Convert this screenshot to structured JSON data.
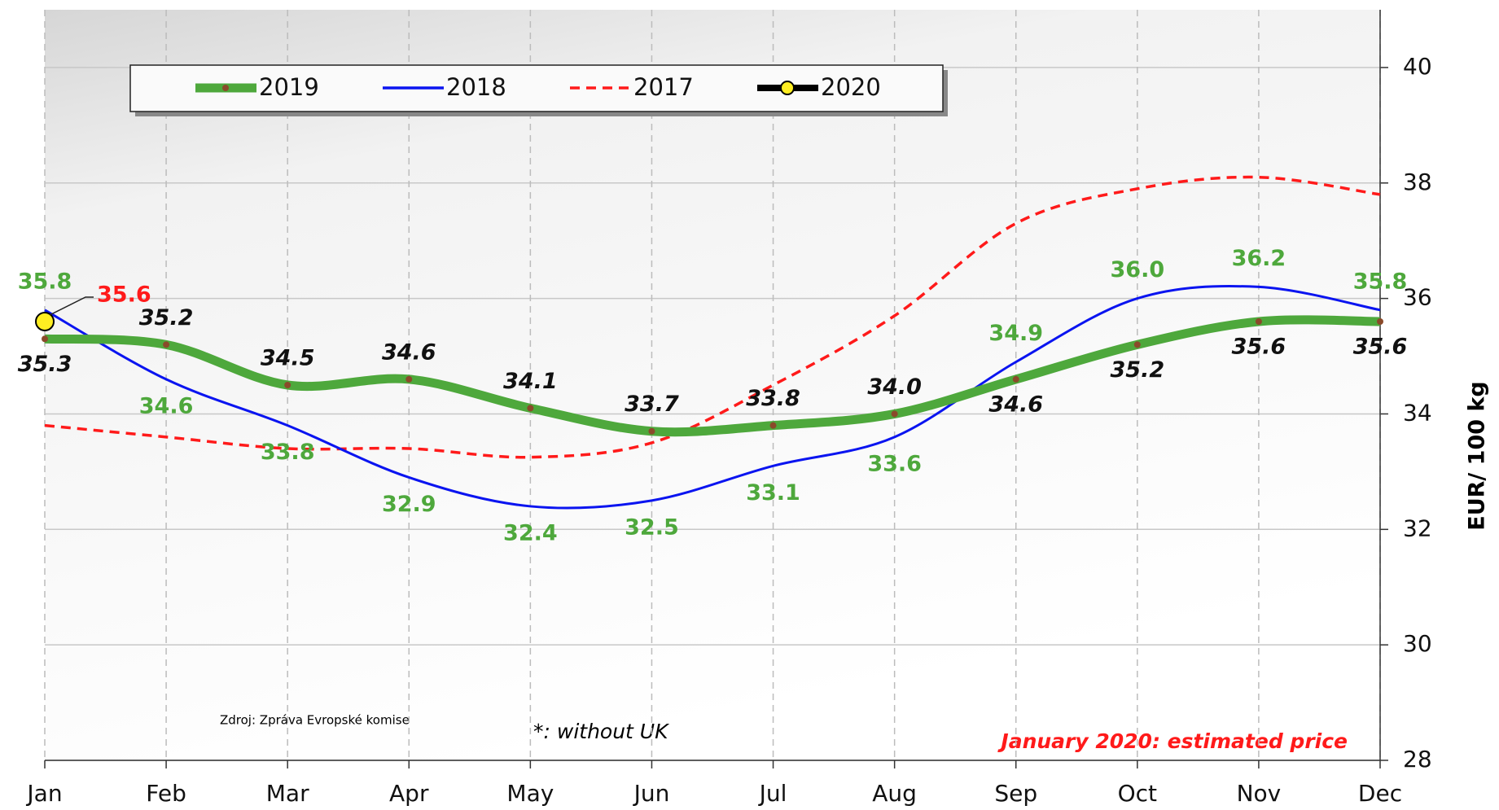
{
  "chart_data": {
    "type": "line",
    "y_label": "EUR/ 100 kg",
    "categories": [
      "Jan",
      "Feb",
      "Mar",
      "Apr",
      "May",
      "Jun",
      "Jul",
      "Aug",
      "Sep",
      "Oct",
      "Nov",
      "Dec"
    ],
    "series": [
      {
        "name": "2019",
        "color": "#4ea83c",
        "label_color": "#111111",
        "values": [
          35.3,
          35.2,
          34.5,
          34.6,
          34.1,
          33.7,
          33.8,
          34.0,
          34.6,
          35.2,
          35.6,
          35.6
        ],
        "value_labels": [
          "35.3",
          "35.2",
          "34.5",
          "34.6",
          "34.1",
          "33.7",
          "33.8",
          "34.0",
          "34.6",
          "35.2",
          "35.6",
          "35.6"
        ]
      },
      {
        "name": "2018",
        "color": "#0a14f0",
        "label_color": "#4ea83c",
        "values": [
          35.8,
          34.6,
          33.8,
          32.9,
          32.4,
          32.5,
          33.1,
          33.6,
          34.9,
          36.0,
          36.2,
          35.8
        ],
        "value_labels": [
          "35.8",
          "34.6",
          "33.8",
          "32.9",
          "32.4",
          "32.5",
          "33.1",
          "33.6",
          "34.9",
          "36.0",
          "36.2",
          "35.8"
        ]
      },
      {
        "name": "2017",
        "color": "#ff1a1a",
        "dashed": true,
        "values": [
          33.8,
          33.6,
          33.4,
          33.4,
          33.25,
          33.5,
          34.5,
          35.7,
          37.3,
          37.9,
          38.1,
          37.8
        ]
      },
      {
        "name": "2020",
        "color": "#000000",
        "marker_color": "#ffee22",
        "label_color": "#ff1a1a",
        "values": [
          35.6,
          null,
          null,
          null,
          null,
          null,
          null,
          null,
          null,
          null,
          null,
          null
        ],
        "value_labels": [
          "35.6",
          null,
          null,
          null,
          null,
          null,
          null,
          null,
          null,
          null,
          null,
          null
        ]
      }
    ],
    "ylim": [
      28,
      41
    ],
    "yticks": [
      28,
      30,
      32,
      34,
      36,
      38,
      40
    ],
    "grid": true,
    "annotations": [
      "Zdroj: Zpráva Evropské komise",
      "*: without UK",
      "January 2020: estimated price"
    ]
  }
}
